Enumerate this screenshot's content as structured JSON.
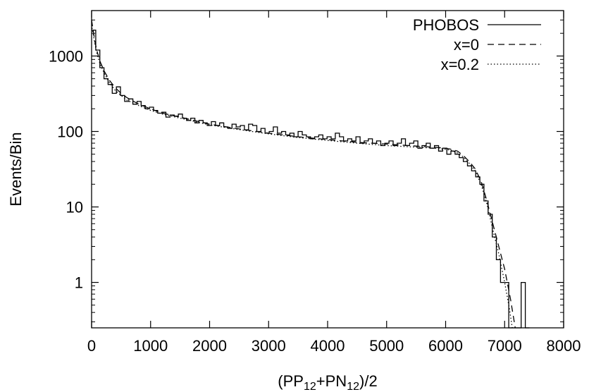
{
  "chart_data": {
    "type": "line",
    "title": "",
    "xlabel": "(PP12+PN12)/2",
    "xlabel_parts": {
      "pre": "(PP",
      "sub1": "12",
      "mid": "+PN",
      "sub2": "12",
      "post": ")/2"
    },
    "ylabel": "Events/Bin",
    "xlim": [
      0,
      8000
    ],
    "ylim": [
      0.25,
      4000
    ],
    "yscale": "log",
    "grid": false,
    "legend_position": "top-right",
    "x_ticks": [
      "0",
      "1000",
      "2000",
      "3000",
      "4000",
      "5000",
      "6000",
      "7000",
      "8000"
    ],
    "x_tick_values": [
      0,
      1000,
      2000,
      3000,
      4000,
      5000,
      6000,
      7000,
      8000
    ],
    "y_ticks": [
      "1",
      "10",
      "100",
      "1000"
    ],
    "y_tick_values": [
      1,
      10,
      100,
      1000
    ],
    "series": [
      {
        "name": "PHOBOS",
        "style": "solid-histogram",
        "color": "#000000",
        "bin_width": 70,
        "bins": [
          {
            "x0": 0,
            "y": 2200
          },
          {
            "x0": 70,
            "y": 1200
          },
          {
            "x0": 140,
            "y": 700
          },
          {
            "x0": 210,
            "y": 500
          },
          {
            "x0": 280,
            "y": 420
          },
          {
            "x0": 350,
            "y": 320
          },
          {
            "x0": 420,
            "y": 390
          },
          {
            "x0": 490,
            "y": 300
          },
          {
            "x0": 560,
            "y": 250
          },
          {
            "x0": 630,
            "y": 270
          },
          {
            "x0": 700,
            "y": 230
          },
          {
            "x0": 770,
            "y": 250
          },
          {
            "x0": 840,
            "y": 220
          },
          {
            "x0": 910,
            "y": 200
          },
          {
            "x0": 980,
            "y": 210
          },
          {
            "x0": 1050,
            "y": 190
          },
          {
            "x0": 1120,
            "y": 175
          },
          {
            "x0": 1190,
            "y": 180
          },
          {
            "x0": 1260,
            "y": 155
          },
          {
            "x0": 1330,
            "y": 165
          },
          {
            "x0": 1400,
            "y": 160
          },
          {
            "x0": 1470,
            "y": 170
          },
          {
            "x0": 1540,
            "y": 150
          },
          {
            "x0": 1610,
            "y": 140
          },
          {
            "x0": 1680,
            "y": 150
          },
          {
            "x0": 1750,
            "y": 130
          },
          {
            "x0": 1820,
            "y": 140
          },
          {
            "x0": 1890,
            "y": 130
          },
          {
            "x0": 1960,
            "y": 120
          },
          {
            "x0": 2030,
            "y": 135
          },
          {
            "x0": 2100,
            "y": 120
          },
          {
            "x0": 2170,
            "y": 130
          },
          {
            "x0": 2240,
            "y": 115
          },
          {
            "x0": 2310,
            "y": 110
          },
          {
            "x0": 2380,
            "y": 125
          },
          {
            "x0": 2450,
            "y": 115
          },
          {
            "x0": 2520,
            "y": 120
          },
          {
            "x0": 2590,
            "y": 105
          },
          {
            "x0": 2660,
            "y": 125
          },
          {
            "x0": 2730,
            "y": 120
          },
          {
            "x0": 2800,
            "y": 100
          },
          {
            "x0": 2870,
            "y": 110
          },
          {
            "x0": 2940,
            "y": 95
          },
          {
            "x0": 3010,
            "y": 100
          },
          {
            "x0": 3080,
            "y": 115
          },
          {
            "x0": 3150,
            "y": 95
          },
          {
            "x0": 3220,
            "y": 100
          },
          {
            "x0": 3290,
            "y": 90
          },
          {
            "x0": 3360,
            "y": 95
          },
          {
            "x0": 3430,
            "y": 85
          },
          {
            "x0": 3500,
            "y": 100
          },
          {
            "x0": 3570,
            "y": 90
          },
          {
            "x0": 3640,
            "y": 85
          },
          {
            "x0": 3710,
            "y": 80
          },
          {
            "x0": 3780,
            "y": 85
          },
          {
            "x0": 3850,
            "y": 90
          },
          {
            "x0": 3920,
            "y": 80
          },
          {
            "x0": 3990,
            "y": 85
          },
          {
            "x0": 4060,
            "y": 80
          },
          {
            "x0": 4130,
            "y": 95
          },
          {
            "x0": 4200,
            "y": 85
          },
          {
            "x0": 4270,
            "y": 75
          },
          {
            "x0": 4340,
            "y": 80
          },
          {
            "x0": 4410,
            "y": 75
          },
          {
            "x0": 4480,
            "y": 85
          },
          {
            "x0": 4550,
            "y": 70
          },
          {
            "x0": 4620,
            "y": 75
          },
          {
            "x0": 4690,
            "y": 80
          },
          {
            "x0": 4760,
            "y": 70
          },
          {
            "x0": 4830,
            "y": 75
          },
          {
            "x0": 4900,
            "y": 65
          },
          {
            "x0": 4970,
            "y": 70
          },
          {
            "x0": 5040,
            "y": 75
          },
          {
            "x0": 5110,
            "y": 65
          },
          {
            "x0": 5180,
            "y": 70
          },
          {
            "x0": 5250,
            "y": 80
          },
          {
            "x0": 5320,
            "y": 65
          },
          {
            "x0": 5390,
            "y": 70
          },
          {
            "x0": 5460,
            "y": 75
          },
          {
            "x0": 5530,
            "y": 60
          },
          {
            "x0": 5600,
            "y": 65
          },
          {
            "x0": 5670,
            "y": 70
          },
          {
            "x0": 5740,
            "y": 60
          },
          {
            "x0": 5810,
            "y": 65
          },
          {
            "x0": 5880,
            "y": 55
          },
          {
            "x0": 5950,
            "y": 60
          },
          {
            "x0": 6020,
            "y": 50
          },
          {
            "x0": 6090,
            "y": 55
          },
          {
            "x0": 6160,
            "y": 50
          },
          {
            "x0": 6230,
            "y": 45
          },
          {
            "x0": 6300,
            "y": 40
          },
          {
            "x0": 6370,
            "y": 35
          },
          {
            "x0": 6440,
            "y": 30
          },
          {
            "x0": 6510,
            "y": 25
          },
          {
            "x0": 6580,
            "y": 20
          },
          {
            "x0": 6650,
            "y": 12
          },
          {
            "x0": 6720,
            "y": 8
          },
          {
            "x0": 6790,
            "y": 4
          },
          {
            "x0": 6860,
            "y": 2
          },
          {
            "x0": 6930,
            "y": 1
          },
          {
            "x0": 7000,
            "y": 1
          },
          {
            "x0": 7070,
            "y": 0.25
          },
          {
            "x0": 7140,
            "y": 0.25
          },
          {
            "x0": 7210,
            "y": 0.25
          },
          {
            "x0": 7280,
            "y": 1
          },
          {
            "x0": 7350,
            "y": 0.25
          }
        ]
      },
      {
        "name": "x=0",
        "style": "dashed",
        "color": "#000000",
        "points": [
          [
            0,
            3000
          ],
          [
            30,
            2100
          ],
          [
            60,
            1500
          ],
          [
            100,
            1100
          ],
          [
            150,
            820
          ],
          [
            220,
            620
          ],
          [
            300,
            480
          ],
          [
            400,
            380
          ],
          [
            500,
            320
          ],
          [
            600,
            280
          ],
          [
            800,
            230
          ],
          [
            1000,
            200
          ],
          [
            1200,
            175
          ],
          [
            1500,
            155
          ],
          [
            2000,
            125
          ],
          [
            2500,
            108
          ],
          [
            3000,
            95
          ],
          [
            3500,
            85
          ],
          [
            4000,
            78
          ],
          [
            4500,
            72
          ],
          [
            5000,
            68
          ],
          [
            5500,
            64
          ],
          [
            5800,
            62
          ],
          [
            6000,
            60
          ],
          [
            6100,
            58
          ],
          [
            6200,
            55
          ],
          [
            6300,
            48
          ],
          [
            6400,
            40
          ],
          [
            6500,
            32
          ],
          [
            6600,
            22
          ],
          [
            6700,
            12
          ],
          [
            6800,
            6
          ],
          [
            6900,
            3
          ],
          [
            7000,
            1.5
          ],
          [
            7100,
            0.6
          ],
          [
            7180,
            0.25
          ]
        ]
      },
      {
        "name": "x=0.2",
        "style": "dotted",
        "color": "#000000",
        "points": [
          [
            0,
            2600
          ],
          [
            30,
            1900
          ],
          [
            60,
            1400
          ],
          [
            100,
            1000
          ],
          [
            150,
            760
          ],
          [
            220,
            580
          ],
          [
            300,
            450
          ],
          [
            400,
            350
          ],
          [
            500,
            300
          ],
          [
            600,
            260
          ],
          [
            800,
            220
          ],
          [
            1000,
            190
          ],
          [
            1200,
            170
          ],
          [
            1500,
            150
          ],
          [
            2000,
            122
          ],
          [
            2500,
            106
          ],
          [
            3000,
            93
          ],
          [
            3500,
            83
          ],
          [
            4000,
            76
          ],
          [
            4500,
            70
          ],
          [
            5000,
            65
          ],
          [
            5500,
            62
          ],
          [
            5800,
            60
          ],
          [
            6000,
            58
          ],
          [
            6100,
            56
          ],
          [
            6200,
            52
          ],
          [
            6300,
            46
          ],
          [
            6400,
            38
          ],
          [
            6500,
            30
          ],
          [
            6600,
            20
          ],
          [
            6700,
            11
          ],
          [
            6800,
            5
          ],
          [
            6900,
            2.4
          ],
          [
            7000,
            1.0
          ],
          [
            7080,
            0.45
          ],
          [
            7130,
            0.25
          ]
        ]
      }
    ]
  }
}
